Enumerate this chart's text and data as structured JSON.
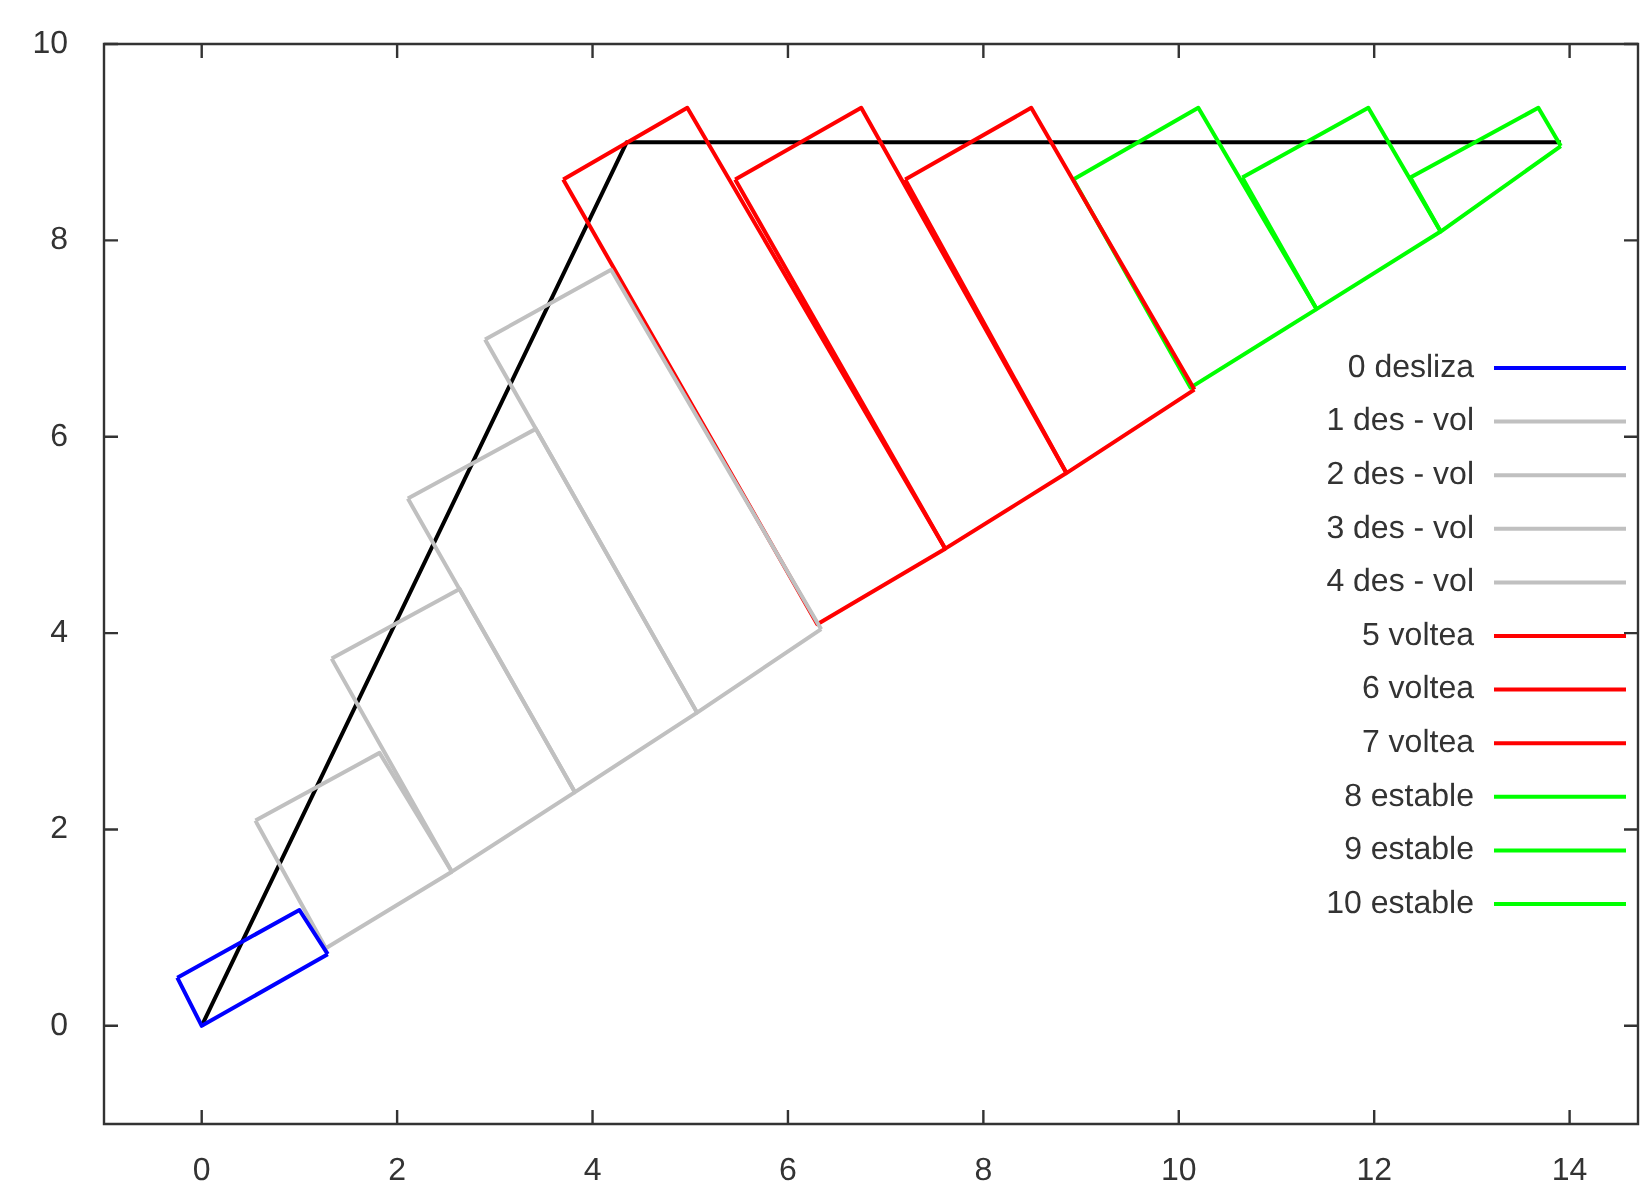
{
  "chart_data": {
    "type": "line",
    "xlim": [
      -1,
      14.7
    ],
    "ylim": [
      -1,
      10
    ],
    "xticks": [
      0,
      2,
      4,
      6,
      8,
      10,
      12,
      14
    ],
    "yticks": [
      0,
      2,
      4,
      6,
      8,
      10
    ],
    "grid": false,
    "legend": "right",
    "marker": "none",
    "line_style": "solid",
    "series": [
      {
        "name": "0 desliza",
        "color": "#0000ff",
        "x": [
          -0.25,
          1.0,
          1.29
        ],
        "values": [
          0.49,
          1.18,
          0.73
        ]
      },
      {
        "color": "#0000ff",
        "x": [
          -0.25,
          0,
          1.29
        ],
        "values": [
          0.49,
          0,
          0.73
        ]
      },
      {
        "name": "1 des - vol",
        "color": "#c0c0c0",
        "x": [
          0.55,
          1.82,
          2.56
        ],
        "values": [
          2.09,
          2.78,
          1.57
        ]
      },
      {
        "color": "#c0c0c0",
        "x": [
          0.55,
          1.27,
          2.56
        ],
        "values": [
          2.09,
          0.79,
          1.57
        ]
      },
      {
        "name": "2 des - vol",
        "color": "#c0c0c0",
        "x": [
          1.33,
          2.64,
          3.82
        ],
        "values": [
          3.74,
          4.45,
          2.38
        ]
      },
      {
        "color": "#c0c0c0",
        "x": [
          1.33,
          2.56,
          3.82
        ],
        "values": [
          3.74,
          1.57,
          2.38
        ]
      },
      {
        "name": "3 des - vol",
        "color": "#c0c0c0",
        "x": [
          2.11,
          3.42,
          5.07
        ],
        "values": [
          5.37,
          6.08,
          3.19
        ]
      },
      {
        "color": "#c0c0c0",
        "x": [
          2.11,
          3.82,
          5.07
        ],
        "values": [
          5.37,
          2.38,
          3.19
        ]
      },
      {
        "name": "4 des - vol",
        "color": "#c0c0c0",
        "x": [
          2.9,
          4.19,
          6.34
        ],
        "values": [
          6.99,
          7.7,
          4.04
        ]
      },
      {
        "color": "#c0c0c0",
        "x": [
          2.9,
          5.07,
          6.34
        ],
        "values": [
          6.99,
          3.19,
          4.04
        ]
      },
      {
        "name": "5 voltea",
        "color": "#ff0000",
        "x": [
          3.7,
          4.97,
          7.61
        ],
        "values": [
          8.62,
          9.35,
          4.86
        ]
      },
      {
        "color": "#ff0000",
        "x": [
          3.7,
          6.3,
          7.61
        ],
        "values": [
          8.62,
          4.09,
          4.86
        ]
      },
      {
        "name": "6 voltea",
        "color": "#ff0000",
        "x": [
          5.46,
          6.75,
          8.85
        ],
        "values": [
          8.62,
          9.35,
          5.63
        ]
      },
      {
        "color": "#ff0000",
        "x": [
          5.46,
          7.61,
          8.85
        ],
        "values": [
          8.62,
          4.86,
          5.63
        ]
      },
      {
        "name": "7 voltea",
        "color": "#ff0000",
        "x": [
          7.2,
          8.49,
          10.16
        ],
        "values": [
          8.62,
          9.35,
          6.48
        ]
      },
      {
        "color": "#ff0000",
        "x": [
          7.2,
          8.85,
          10.16
        ],
        "values": [
          8.62,
          5.63,
          6.48
        ]
      },
      {
        "name": "8 estable",
        "color": "#00ff00",
        "x": [
          8.92,
          10.2,
          11.41
        ],
        "values": [
          8.62,
          9.35,
          7.3
        ]
      },
      {
        "color": "#00ff00",
        "x": [
          8.92,
          10.12,
          11.41
        ],
        "values": [
          8.62,
          6.5,
          7.3
        ]
      },
      {
        "name": "9 estable",
        "color": "#00ff00",
        "x": [
          10.65,
          11.94,
          12.68
        ],
        "values": [
          8.64,
          9.35,
          8.09
        ]
      },
      {
        "color": "#00ff00",
        "x": [
          10.65,
          11.41,
          12.68
        ],
        "values": [
          8.64,
          7.3,
          8.09
        ]
      },
      {
        "name": "10 estable",
        "color": "#00ff00",
        "x": [
          12.37,
          13.68,
          13.91
        ],
        "values": [
          8.64,
          9.35,
          8.96
        ]
      },
      {
        "color": "#00ff00",
        "x": [
          12.37,
          12.68,
          13.91
        ],
        "values": [
          8.64,
          8.09,
          8.96
        ]
      },
      {
        "color": "#000000",
        "x": [
          0,
          4.35,
          13.91
        ],
        "values": [
          0,
          9,
          9
        ]
      }
    ]
  }
}
